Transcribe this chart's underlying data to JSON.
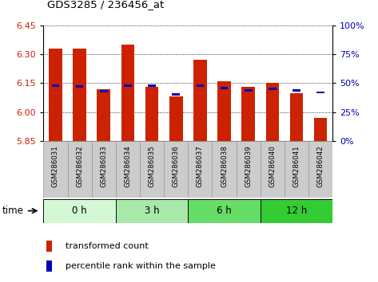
{
  "title": "GDS3285 / 236456_at",
  "samples": [
    "GSM286031",
    "GSM286032",
    "GSM286033",
    "GSM286034",
    "GSM286035",
    "GSM286036",
    "GSM286037",
    "GSM286038",
    "GSM286039",
    "GSM286040",
    "GSM286041",
    "GSM286042"
  ],
  "transformed_count": [
    6.33,
    6.33,
    6.12,
    6.35,
    6.13,
    6.08,
    6.27,
    6.16,
    6.13,
    6.15,
    6.1,
    5.97
  ],
  "percentile_rank": [
    48,
    47,
    43,
    48,
    48,
    40,
    48,
    46,
    44,
    45,
    44,
    42
  ],
  "y_min": 5.85,
  "y_max": 6.45,
  "y_ticks_left": [
    5.85,
    6.0,
    6.15,
    6.3,
    6.45
  ],
  "y_ticks_right": [
    0,
    25,
    50,
    75,
    100
  ],
  "bar_color": "#cc2200",
  "blue_color": "#0000bb",
  "groups": [
    {
      "label": "0 h",
      "indices": [
        0,
        1,
        2
      ],
      "color": "#d4f7d4"
    },
    {
      "label": "3 h",
      "indices": [
        3,
        4,
        5
      ],
      "color": "#a8e8a8"
    },
    {
      "label": "6 h",
      "indices": [
        6,
        7,
        8
      ],
      "color": "#66dd66"
    },
    {
      "label": "12 h",
      "indices": [
        9,
        10,
        11
      ],
      "color": "#33cc33"
    }
  ],
  "xlabel_color": "#cc2200",
  "right_axis_color": "#0000bb",
  "grid_color": "#000000",
  "sample_box_color": "#cccccc",
  "sample_box_edge": "#999999"
}
